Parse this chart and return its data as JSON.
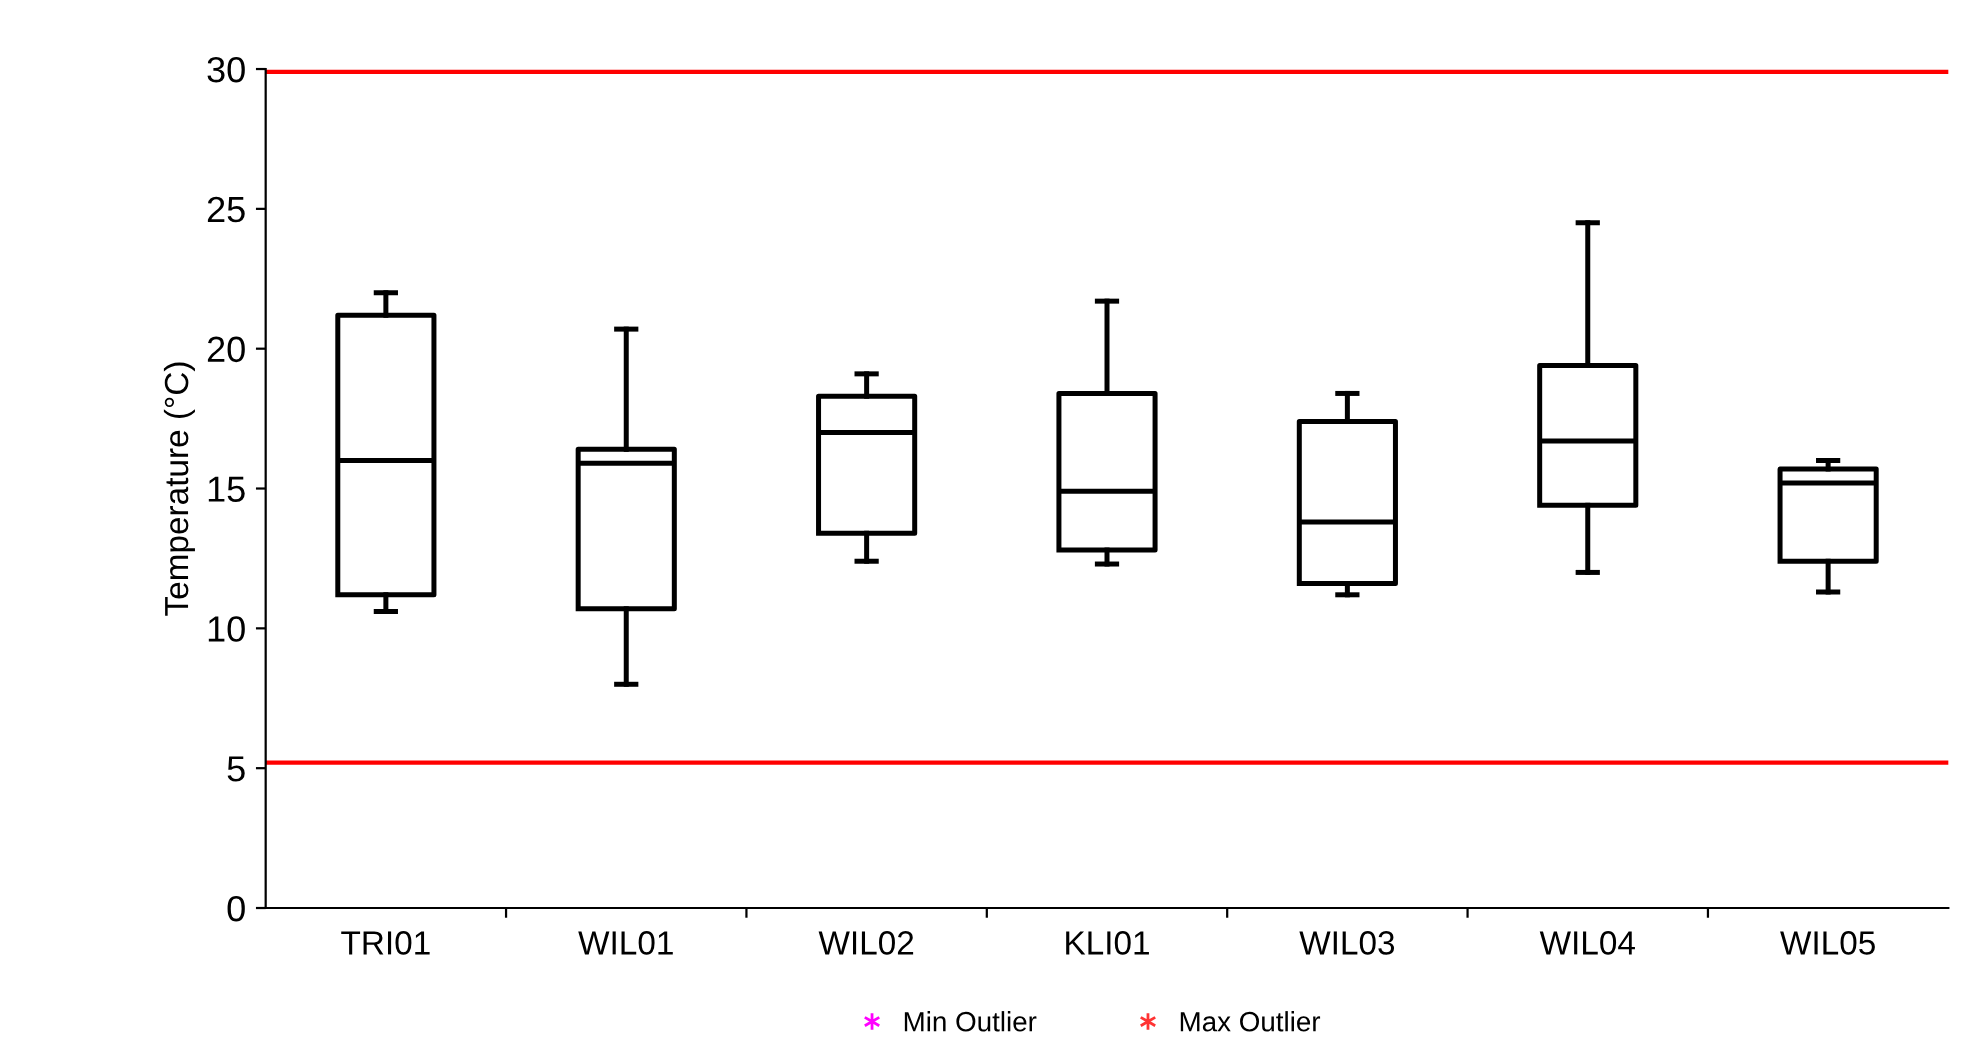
{
  "chart_data": {
    "type": "box",
    "ylabel": "Temperature (°C)",
    "categories": [
      "TRI01",
      "WIL01",
      "WIL02",
      "KLI01",
      "WIL03",
      "WIL04",
      "WIL05"
    ],
    "boxes": [
      {
        "low": 10.6,
        "q1": 11.2,
        "median": 16.0,
        "q3": 21.2,
        "high": 22.0
      },
      {
        "low": 8.0,
        "q1": 10.7,
        "median": 15.9,
        "q3": 16.4,
        "high": 20.7
      },
      {
        "low": 12.4,
        "q1": 13.4,
        "median": 17.0,
        "q3": 18.3,
        "high": 19.1
      },
      {
        "low": 12.3,
        "q1": 12.8,
        "median": 14.9,
        "q3": 18.4,
        "high": 21.7
      },
      {
        "low": 11.2,
        "q1": 11.6,
        "median": 13.8,
        "q3": 17.4,
        "high": 18.4
      },
      {
        "low": 12.0,
        "q1": 14.4,
        "median": 16.7,
        "q3": 19.4,
        "high": 24.5
      },
      {
        "low": 11.3,
        "q1": 12.4,
        "median": 15.2,
        "q3": 15.7,
        "high": 16.0
      }
    ],
    "series": [
      {
        "name": "Min Outlier",
        "type": "scatter",
        "color": "#ff00ff",
        "values": [
          null,
          null,
          null,
          null,
          null,
          null,
          null
        ]
      },
      {
        "name": "Max Outlier",
        "type": "scatter",
        "color": "#ff3333",
        "values": [
          null,
          null,
          null,
          null,
          null,
          null,
          null
        ]
      }
    ],
    "marker": "star",
    "ylim": [
      0,
      30
    ],
    "yticks": [
      0,
      5,
      10,
      15,
      20,
      25,
      30
    ],
    "ref_lines": [
      {
        "axis": "y",
        "value": 29.9,
        "color": "#ff0000"
      },
      {
        "axis": "y",
        "value": 5.2,
        "color": "#ff0000"
      }
    ],
    "grid": false,
    "legend": "bottom"
  }
}
